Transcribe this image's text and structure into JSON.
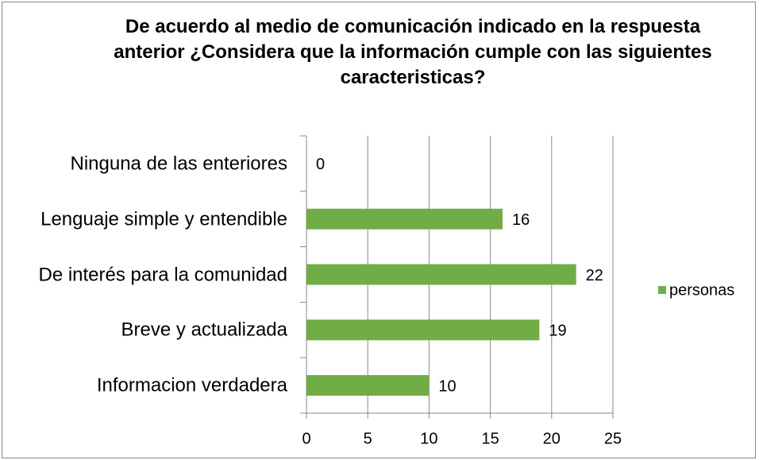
{
  "chart_data": {
    "type": "bar",
    "orientation": "horizontal",
    "title": "De acuerdo al medio de comunicación indicado en la respuesta anterior ¿Considera que la información cumple con las siguientes caracteristicas?",
    "categories": [
      "Ninguna de las enteriores",
      "Lenguaje simple y entendible",
      "De interés para la comunidad",
      "Breve y actualizada",
      "Informacion verdadera"
    ],
    "series": [
      {
        "name": "personas",
        "color": "#70ad47",
        "values": [
          0,
          16,
          22,
          19,
          10
        ]
      }
    ],
    "xlim": [
      0,
      25
    ],
    "xticks": [
      0,
      5,
      10,
      15,
      20,
      25
    ],
    "grid": true,
    "legend": "right"
  }
}
